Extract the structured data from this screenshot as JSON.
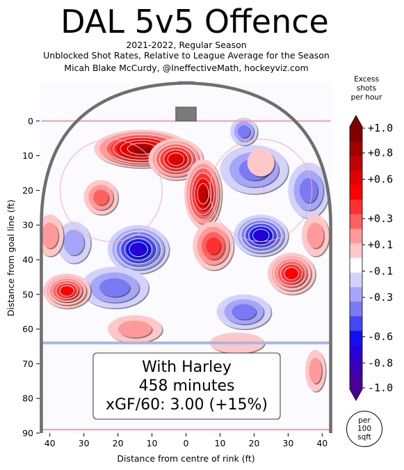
{
  "header": {
    "title": "DAL 5v5 Offence",
    "subtitle_lines": [
      "2021-2022, Regular Season",
      "Unblocked Shot Rates, Relative to League Average for the Season",
      "Micah Blake McCurdy, @IneffectiveMath, hockeyviz.com"
    ]
  },
  "chart_data": {
    "type": "heatmap",
    "xlabel": "Distance from centre of rink (ft)",
    "ylabel": "Distance from goal line (ft)",
    "xlim": [
      -43,
      43
    ],
    "ylim": [
      90,
      -11
    ],
    "xticks": [
      -40,
      -30,
      -20,
      -10,
      0,
      10,
      20,
      30,
      40
    ],
    "xtick_labels": [
      "40",
      "30",
      "20",
      "10",
      "0",
      "10",
      "20",
      "30",
      "40"
    ],
    "yticks": [
      0,
      10,
      20,
      30,
      40,
      50,
      60,
      70,
      80,
      90
    ],
    "ytick_labels": [
      "0",
      "10",
      "20",
      "30",
      "40",
      "50",
      "60",
      "70",
      "80",
      "90"
    ],
    "colorbar": {
      "title_lines": [
        "Excess",
        "shots",
        "per hour"
      ],
      "range": [
        -1.0,
        1.0
      ],
      "tick_values": [
        1.0,
        0.8,
        0.6,
        0.3,
        0.1,
        -0.1,
        -0.3,
        -0.6,
        -0.8,
        -1.0
      ],
      "tick_labels": [
        "+1.0",
        "+0.8",
        "+0.6",
        "+0.3",
        "+0.1",
        "-0.1",
        "-0.3",
        "-0.6",
        "-0.8",
        "-1.0"
      ],
      "unit_lines": [
        "per",
        "100",
        "sqft"
      ]
    },
    "hotspots": [
      {
        "x": -13,
        "y": 8,
        "value": 1.0,
        "rx": 14,
        "ry": 5.5
      },
      {
        "x": -3,
        "y": 11,
        "value": 0.7,
        "rx": 8,
        "ry": 6
      },
      {
        "x": 5,
        "y": 21,
        "value": 0.85,
        "rx": 5.5,
        "ry": 10
      },
      {
        "x": 8,
        "y": 36,
        "value": 0.45,
        "rx": 6,
        "ry": 7
      },
      {
        "x": -25,
        "y": 22,
        "value": 0.3,
        "rx": 5,
        "ry": 5
      },
      {
        "x": 31,
        "y": 44,
        "value": 0.55,
        "rx": 7,
        "ry": 6
      },
      {
        "x": -35,
        "y": 49,
        "value": 0.55,
        "rx": 7,
        "ry": 5
      },
      {
        "x": -40,
        "y": 33,
        "value": 0.25,
        "rx": 4,
        "ry": 6
      },
      {
        "x": 38,
        "y": 33,
        "value": 0.2,
        "rx": 4,
        "ry": 6
      },
      {
        "x": 22,
        "y": 12,
        "value": 0.15,
        "rx": 4,
        "ry": 4
      },
      {
        "x": 38,
        "y": 72,
        "value": 0.25,
        "rx": 3,
        "ry": 6
      },
      {
        "x": -15,
        "y": 60,
        "value": 0.2,
        "rx": 8,
        "ry": 4
      },
      {
        "x": 15,
        "y": 64,
        "value": 0.15,
        "rx": 8,
        "ry": 3
      }
    ],
    "coldspots": [
      {
        "x": -14,
        "y": 37,
        "value": -0.75,
        "rx": 9,
        "ry": 7
      },
      {
        "x": 22,
        "y": 33,
        "value": -0.7,
        "rx": 8,
        "ry": 6
      },
      {
        "x": 20,
        "y": 14,
        "value": -0.35,
        "rx": 10,
        "ry": 7
      },
      {
        "x": 36,
        "y": 20,
        "value": -0.35,
        "rx": 6,
        "ry": 8
      },
      {
        "x": -21,
        "y": 48,
        "value": -0.35,
        "rx": 10,
        "ry": 6
      },
      {
        "x": 17,
        "y": 55,
        "value": -0.35,
        "rx": 8,
        "ry": 5
      },
      {
        "x": 17,
        "y": 3,
        "value": -0.3,
        "rx": 4,
        "ry": 4
      },
      {
        "x": -33,
        "y": 35,
        "value": -0.2,
        "rx": 5,
        "ry": 6
      }
    ],
    "annotation_lines": [
      "With Harley",
      "458 minutes",
      "xGF/60: 3.00 (+15%)"
    ]
  },
  "colors": {
    "scale": [
      "#4a0096",
      "#3a00b8",
      "#2800d8",
      "#1010f0",
      "#4646f5",
      "#7a7af5",
      "#a6a6f8",
      "#d2d2fb",
      "#ffffff",
      "#ffc8c8",
      "#ff9a9a",
      "#ff6060",
      "#ff3030",
      "#ff0000",
      "#e00000",
      "#c00000",
      "#a00000",
      "#800000"
    ],
    "board": "#6e6e6e",
    "goal_line": "#f0a0a8",
    "blue_line": "#a8b4e4",
    "faceoff": "#f4b0b8",
    "net": "#7a7a7a"
  }
}
